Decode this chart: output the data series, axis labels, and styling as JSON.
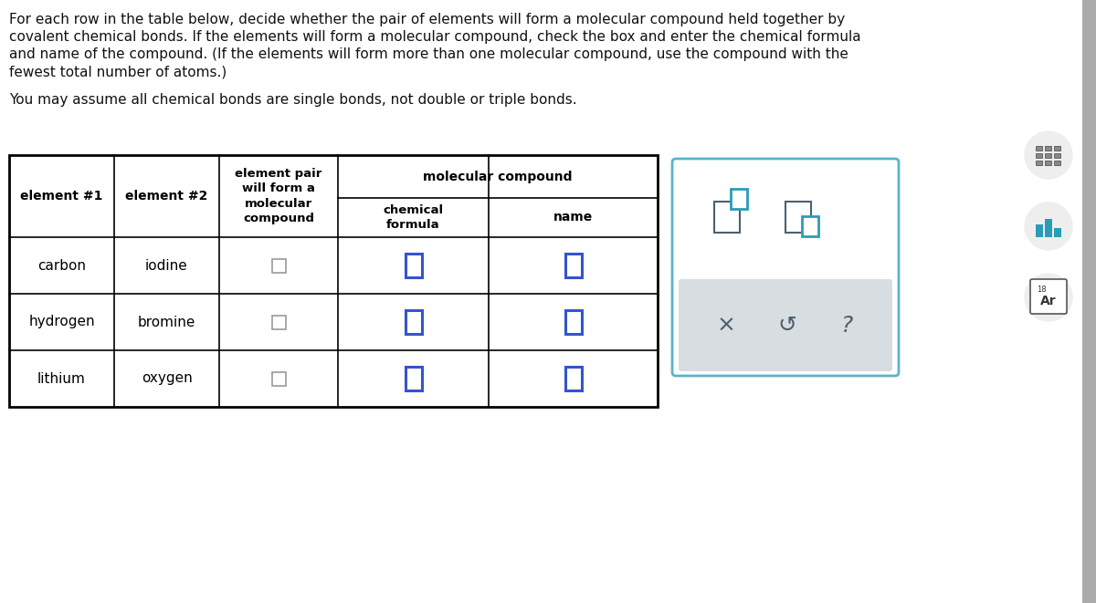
{
  "bg_color": "#ffffff",
  "title_lines": [
    "For each row in the table below, decide whether the pair of elements will form a molecular compound held together by",
    "covalent chemical bonds. If the elements will form a molecular compound, check the box and enter the chemical formula",
    "and name of the compound. (If the elements will form more than one molecular compound, use the compound with the",
    "fewest total number of atoms.)"
  ],
  "subtitle": "You may assume all chemical bonds are single bonds, not double or triple bonds.",
  "rows": [
    [
      "carbon",
      "iodine"
    ],
    [
      "hydrogen",
      "bromine"
    ],
    [
      "lithium",
      "oxygen"
    ]
  ],
  "checkbox_gray": "#999999",
  "checkbox_blue": "#3355cc",
  "panel_border": "#5ab4c8",
  "panel_gray_bg": "#d8dde2",
  "icon_color": "#4a9ab0",
  "icon_dark": "#4a6070",
  "icon_teal": "#2a9db5",
  "right_bar_color": "#cccccc",
  "text_color": "#111111"
}
